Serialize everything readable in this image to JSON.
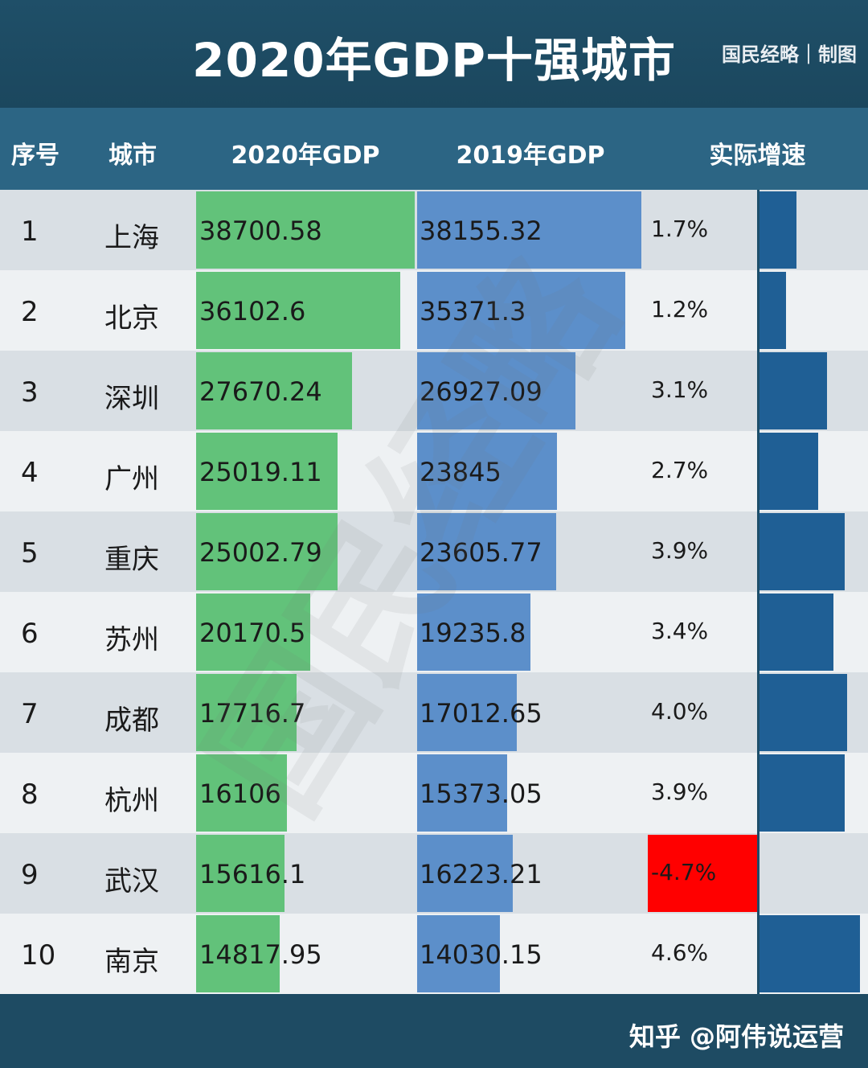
{
  "header": {
    "title": "2020年GDP十强城市",
    "brand": "国民经略｜制图"
  },
  "columns": [
    "序号",
    "城市",
    "2020年GDP",
    "2019年GDP",
    "实际增速"
  ],
  "footer": {
    "credit": "知乎 @阿伟说运营"
  },
  "watermark": "国民经略",
  "colors": {
    "gdp2020": "#62c27a",
    "gdp2019": "#5c8fca",
    "growth": "#1f5f95",
    "negative": "#ff0000"
  },
  "chart_data": {
    "type": "table",
    "title": "2020年GDP十强城市",
    "columns": [
      "序号",
      "城市",
      "2020年GDP",
      "2019年GDP",
      "实际增速"
    ],
    "rows": [
      {
        "rank": "1",
        "city": "上海",
        "gdp2020": "38700.58",
        "gdp2019": "38155.32",
        "growth": "1.7%"
      },
      {
        "rank": "2",
        "city": "北京",
        "gdp2020": "36102.6",
        "gdp2019": "35371.3",
        "growth": "1.2%"
      },
      {
        "rank": "3",
        "city": "深圳",
        "gdp2020": "27670.24",
        "gdp2019": "26927.09",
        "growth": "3.1%"
      },
      {
        "rank": "4",
        "city": "广州",
        "gdp2020": "25019.11",
        "gdp2019": "23845",
        "growth": "2.7%"
      },
      {
        "rank": "5",
        "city": "重庆",
        "gdp2020": "25002.79",
        "gdp2019": "23605.77",
        "growth": "3.9%"
      },
      {
        "rank": "6",
        "city": "苏州",
        "gdp2020": "20170.5",
        "gdp2019": "19235.8",
        "growth": "3.4%"
      },
      {
        "rank": "7",
        "city": "成都",
        "gdp2020": "17716.7",
        "gdp2019": "17012.65",
        "growth": "4.0%"
      },
      {
        "rank": "8",
        "city": "杭州",
        "gdp2020": "16106",
        "gdp2019": "15373.05",
        "growth": "3.9%"
      },
      {
        "rank": "9",
        "city": "武汉",
        "gdp2020": "15616.1",
        "gdp2019": "16223.21",
        "growth": "-4.7%"
      },
      {
        "rank": "10",
        "city": "南京",
        "gdp2020": "14817.95",
        "gdp2019": "14030.15",
        "growth": "4.6%"
      }
    ],
    "gdp_max": 38700.58,
    "growth_max": 4.6
  }
}
